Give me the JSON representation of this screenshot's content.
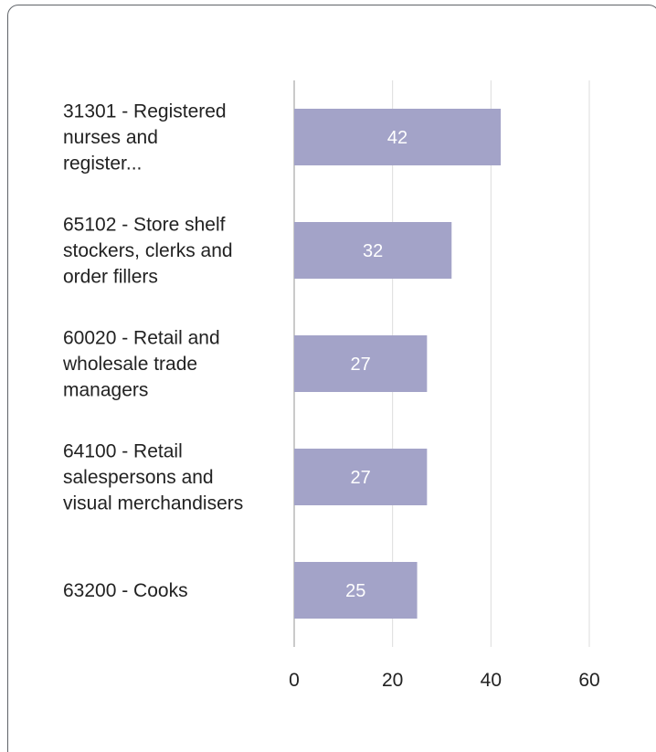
{
  "chart_data": {
    "type": "bar",
    "orientation": "horizontal",
    "title": "",
    "xlabel": "",
    "ylabel": "",
    "categories": [
      [
        "31301 - Registered",
        "nurses and",
        "register..."
      ],
      [
        "65102 - Store shelf",
        "stockers, clerks and",
        "order fillers"
      ],
      [
        "60020 - Retail and",
        "wholesale trade",
        "managers"
      ],
      [
        "64100 - Retail",
        "salespersons and",
        "visual merchandisers"
      ],
      [
        "63200 - Cooks"
      ]
    ],
    "values": [
      42,
      32,
      27,
      27,
      25
    ],
    "data_labels": [
      "42",
      "32",
      "27",
      "27",
      "25"
    ],
    "xlim": [
      0,
      60
    ],
    "xticks": [
      0,
      20,
      40,
      60
    ],
    "xtick_labels": [
      "0",
      "20",
      "40",
      "60"
    ],
    "grid": true,
    "legend": "none",
    "colors": {
      "bar": "#a3a3c8",
      "grid": "#dcdcdc",
      "axis": "#b8b8b8",
      "text": "#222222",
      "data_label": "#ffffff"
    }
  }
}
